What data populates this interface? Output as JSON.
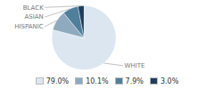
{
  "chart_data": {
    "type": "pie",
    "categories": [
      "WHITE",
      "HISPANIC",
      "ASIAN",
      "BLACK"
    ],
    "values": [
      79.0,
      10.1,
      7.9,
      3.0
    ],
    "value_labels": [
      "79.0%",
      "10.1%",
      "7.9%",
      "3.0%"
    ],
    "colors": [
      "#dce6f1",
      "#8eaabf",
      "#4f7f9b",
      "#1f3d5c"
    ],
    "legend": "bottom"
  }
}
